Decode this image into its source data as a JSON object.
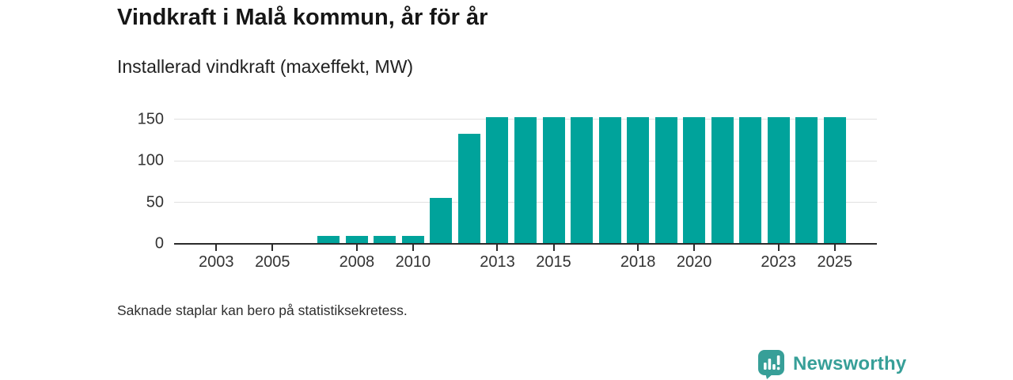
{
  "header": {
    "title": "Vindkraft i Malå kommun, år för år",
    "subtitle": "Installerad vindkraft (maxeffekt, MW)"
  },
  "footer": {
    "note": "Saknade staplar kan bero på statistiksekretess.",
    "brand": "Newsworthy"
  },
  "colors": {
    "bar": "#00a39b",
    "gridline": "#e1e1e1",
    "axis": "#2b2b2b",
    "text": "#333333",
    "brand_teal": "#379f98"
  },
  "chart_data": {
    "type": "bar",
    "title": "Vindkraft i Malå kommun, år för år",
    "subtitle": "Installerad vindkraft (maxeffekt, MW)",
    "xlabel": "",
    "ylabel": "Installerad vindkraft (maxeffekt, MW)",
    "unit": "MW",
    "categories": [
      2007,
      2008,
      2009,
      2010,
      2011,
      2012,
      2013,
      2014,
      2015,
      2016,
      2017,
      2018,
      2019,
      2020,
      2021,
      2022,
      2023,
      2024,
      2025
    ],
    "values": [
      10,
      10,
      10,
      10,
      55,
      132,
      152,
      152,
      152,
      152,
      152,
      152,
      152,
      152,
      152,
      152,
      152,
      152,
      152
    ],
    "x_domain": [
      2002,
      2026
    ],
    "x_ticks": [
      2003,
      2005,
      2008,
      2010,
      2013,
      2015,
      2018,
      2020,
      2023,
      2025
    ],
    "y_ticks": [
      0,
      50,
      100,
      150
    ],
    "y_gridlines": [
      50,
      100,
      150
    ],
    "ylim": [
      0,
      160
    ],
    "grid": true,
    "legend_position": "none",
    "note": "Saknade staplar kan bero på statistiksekretess."
  }
}
